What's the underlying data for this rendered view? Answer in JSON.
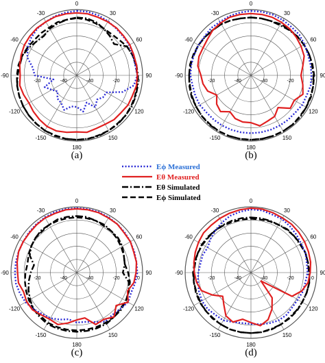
{
  "figure": {
    "legend": [
      {
        "label": "Eϕ Measured",
        "color": "#2a2ad6",
        "text_color": "#2a6fd6",
        "style": "dotted"
      },
      {
        "label": "Eθ Measured",
        "color": "#e02020",
        "text_color": "#e02020",
        "style": "solid"
      },
      {
        "label": "Eθ Simulated",
        "color": "#000000",
        "text_color": "#000000",
        "style": "dashdot"
      },
      {
        "label": "Eϕ Simulated",
        "color": "#000000",
        "text_color": "#000000",
        "style": "dashed"
      }
    ]
  },
  "chart_data": [
    {
      "type": "polar",
      "caption": "(a)",
      "angle_ticks": [
        "0",
        "30",
        "60",
        "90",
        "120",
        "150",
        "180",
        "-150",
        "-120",
        "-90",
        "-60",
        "-30"
      ],
      "radial_ticks": [
        "0",
        "-20",
        "-40"
      ],
      "rlim": [
        -50,
        0
      ],
      "angle_step": 10,
      "series": [
        {
          "name": "Eϕ Measured",
          "values": [
            -1,
            -1,
            -1.5,
            -2.5,
            -3.5,
            -4,
            -4,
            -4.5,
            -5,
            -4,
            -6,
            -13,
            -24,
            -24,
            -26,
            -22,
            -28,
            -22,
            -26,
            -26,
            -22,
            -26,
            -27,
            -31,
            -28,
            -24,
            -32,
            -18,
            -16,
            -10,
            -7,
            -5,
            -3.5,
            -3,
            -2,
            -1.5
          ]
        },
        {
          "name": "Eθ Measured",
          "values": [
            -2.5,
            -2.5,
            -3,
            -3,
            -3,
            -3.5,
            -3.5,
            -4,
            -4,
            -4,
            -4,
            -5,
            -5,
            -6,
            -6,
            -7,
            -7,
            -6,
            -7,
            -6,
            -5,
            -5,
            -6,
            -7,
            -8,
            -7,
            -6,
            -7,
            -6,
            -5,
            -4,
            -3.5,
            -3,
            -3,
            -2.5,
            -2.5
          ]
        },
        {
          "name": "Eθ Simulated",
          "values": [
            -6,
            -6,
            -7,
            -9,
            -11,
            -13,
            -6,
            -5,
            -4,
            -3.5,
            -3,
            -2.5,
            -2,
            -2,
            -1.5,
            -1.5,
            -1,
            -1,
            -1,
            -1,
            -1,
            -1.5,
            -2,
            -2.5,
            -3,
            -3.5,
            -4,
            -5,
            -6,
            -6,
            -8,
            -10,
            -11,
            -9,
            -8,
            -7
          ]
        },
        {
          "name": "Eϕ Simulated",
          "values": [
            -6.5,
            -7,
            -8,
            -9,
            -9,
            -8,
            -6,
            -5,
            -4.5,
            -4,
            -3.5,
            -3,
            -2.5,
            -2,
            -2,
            -1.5,
            -1.5,
            -1,
            -1,
            -1,
            -1.5,
            -1.5,
            -2,
            -2.5,
            -3,
            -3.5,
            -4,
            -4.5,
            -5,
            -6,
            -7,
            -8,
            -8,
            -8,
            -7,
            -7
          ]
        }
      ]
    },
    {
      "type": "polar",
      "caption": "(b)",
      "angle_ticks": [
        "0",
        "30",
        "60",
        "90",
        "120",
        "150",
        "180",
        "-150",
        "-120",
        "-90",
        "-60",
        "-30"
      ],
      "radial_ticks": [
        "0",
        "-20",
        "-40"
      ],
      "rlim": [
        -50,
        0
      ],
      "angle_step": 10,
      "series": [
        {
          "name": "Eϕ Measured",
          "values": [
            -1,
            -1,
            -1,
            -1.5,
            -2,
            -2,
            -3,
            -4,
            -4,
            -4,
            -4,
            -5,
            -5,
            -6,
            -6,
            -6,
            -6,
            -6,
            -6,
            -6,
            -6,
            -6,
            -6,
            -6,
            -5,
            -5,
            -5,
            -4,
            -4,
            -4,
            -4,
            -4,
            -3,
            -3,
            -2,
            -1.5
          ]
        },
        {
          "name": "Eθ Measured",
          "values": [
            -3,
            -3,
            -3,
            -3.5,
            -4,
            -5,
            -6,
            -7,
            -10,
            -12,
            -10,
            -8,
            -12,
            -11,
            -18,
            -14,
            -13,
            -11,
            -14,
            -14,
            -15,
            -18,
            -14,
            -16,
            -20,
            -15,
            -13,
            -12,
            -9,
            -8,
            -8,
            -7,
            -5,
            -4,
            -3,
            -3
          ]
        },
        {
          "name": "Eθ Simulated",
          "values": [
            -6,
            -6,
            -6,
            -6,
            -5,
            -4,
            -3.5,
            -3,
            -3,
            -2.5,
            -2,
            -2,
            -1.5,
            -1,
            -1,
            -1,
            -1,
            -1,
            -1,
            -1,
            -1,
            -1,
            -1,
            -1.5,
            -2,
            -2.5,
            -3,
            -3,
            -3.5,
            -4,
            -4,
            -4.5,
            -5,
            -5,
            -5.5,
            -6
          ]
        },
        {
          "name": "Eϕ Simulated",
          "values": [
            -6,
            -6,
            -6,
            -5,
            -4.5,
            -4,
            -3.5,
            -3,
            -2.5,
            -2,
            -2,
            -1.5,
            -1.5,
            -1.5,
            -1,
            -1,
            -1,
            -1,
            -1,
            -1,
            -1,
            -1,
            -1.5,
            -1.5,
            -2,
            -2,
            -2.5,
            -3,
            -3,
            -3.5,
            -4,
            -4.5,
            -5,
            -5,
            -5.5,
            -6
          ]
        }
      ]
    },
    {
      "type": "polar",
      "caption": "(c)",
      "angle_ticks": [
        "0",
        "30",
        "60",
        "90",
        "120",
        "150",
        "180",
        "-150",
        "-120",
        "-90",
        "-60",
        "-30"
      ],
      "radial_ticks": [
        "0",
        "-20",
        "-40"
      ],
      "rlim": [
        -50,
        0
      ],
      "angle_step": 10,
      "series": [
        {
          "name": "Eϕ Measured",
          "values": [
            -1,
            -1,
            -1,
            -1.5,
            -2,
            -2.5,
            -3,
            -3.5,
            -4,
            -4,
            -5,
            -6,
            -5,
            -7,
            -8,
            -7,
            -10,
            -12,
            -12,
            -14,
            -12,
            -10,
            -9,
            -7,
            -5,
            -4,
            -3,
            -3,
            -3,
            -3,
            -3,
            -2.5,
            -2,
            -1.5,
            -1,
            -1
          ]
        },
        {
          "name": "Eθ Measured",
          "values": [
            -1.5,
            -1.5,
            -1.5,
            -2,
            -2,
            -3,
            -3,
            -4,
            -4,
            -5,
            -6,
            -9,
            -5,
            -11,
            -6,
            -9,
            -8,
            -15,
            -14,
            -11,
            -8,
            -9,
            -8,
            -6,
            -6,
            -7,
            -5,
            -5,
            -4,
            -3,
            -3,
            -3,
            -2.5,
            -2,
            -2,
            -1.5
          ]
        },
        {
          "name": "Eθ Simulated",
          "values": [
            -7,
            -7,
            -8,
            -8,
            -9,
            -9,
            -10,
            -12,
            -13,
            -15,
            -10,
            -8,
            -7,
            -6,
            -6,
            -5,
            -5,
            -5,
            -5,
            -5,
            -5,
            -5,
            -6,
            -7,
            -9,
            -11,
            -13,
            -15,
            -17,
            -12,
            -10,
            -9,
            -8,
            -8,
            -7,
            -7
          ]
        },
        {
          "name": "Eϕ Simulated",
          "values": [
            -8,
            -8,
            -8,
            -9,
            -9,
            -10,
            -11,
            -12,
            -13,
            -11,
            -9,
            -8,
            -7,
            -7,
            -6,
            -6,
            -6,
            -6,
            -6,
            -6,
            -6,
            -6,
            -7,
            -7,
            -8,
            -9,
            -10,
            -11,
            -12,
            -11,
            -10,
            -9,
            -9,
            -8,
            -8,
            -8
          ]
        }
      ]
    },
    {
      "type": "polar",
      "caption": "(d)",
      "angle_ticks": [
        "0",
        "30",
        "60",
        "90",
        "120",
        "150",
        "180",
        "-150",
        "-120",
        "-90",
        "-60",
        "-30"
      ],
      "radial_ticks": [
        "0",
        "-20",
        "-40"
      ],
      "rlim": [
        -50,
        0
      ],
      "angle_step": 10,
      "series": [
        {
          "name": "Eϕ Measured",
          "values": [
            -2,
            -2,
            -3,
            -3,
            -4,
            -5,
            -6,
            -6,
            -7,
            -7,
            -8,
            -8,
            -9,
            -9,
            -8,
            -8,
            -9,
            -10,
            -11,
            -11,
            -10,
            -8,
            -8,
            -7,
            -7,
            -8,
            -9,
            -10,
            -11,
            -11,
            -12,
            -10,
            -8,
            -6,
            -4,
            -3
          ]
        },
        {
          "name": "Eθ Measured",
          "values": [
            -1,
            -1,
            -1.5,
            -2,
            -2,
            -2.5,
            -3,
            -3.5,
            -4,
            -5,
            -6,
            -9,
            -14,
            -40,
            -25,
            -18,
            -12,
            -9,
            -12,
            -14,
            -10,
            -12,
            -18,
            -22,
            -16,
            -10,
            -8,
            -7,
            -6,
            -5,
            -4,
            -3,
            -3,
            -2.5,
            -2,
            -1.5
          ]
        },
        {
          "name": "Eθ Simulated",
          "values": [
            -8,
            -8,
            -8,
            -8,
            -7,
            -7,
            -7,
            -6,
            -6,
            -6,
            -5,
            -5,
            -5,
            -5,
            -5,
            -4.5,
            -4.5,
            -4,
            -4,
            -4,
            -4,
            -4.5,
            -5,
            -5,
            -5.5,
            -6,
            -6,
            -6.5,
            -7,
            -7,
            -7,
            -7.5,
            -8,
            -8,
            -8,
            -8
          ]
        },
        {
          "name": "Eϕ Simulated",
          "values": [
            -9,
            -9,
            -8.5,
            -8,
            -7.5,
            -7,
            -6.5,
            -6,
            -6,
            -5.5,
            -5,
            -5,
            -5,
            -4.5,
            -4.5,
            -4.5,
            -4,
            -4,
            -4,
            -4,
            -4,
            -4.5,
            -4.5,
            -5,
            -5,
            -5.5,
            -6,
            -6,
            -6.5,
            -7,
            -7.5,
            -8,
            -8,
            -8.5,
            -9,
            -9
          ]
        }
      ]
    }
  ]
}
